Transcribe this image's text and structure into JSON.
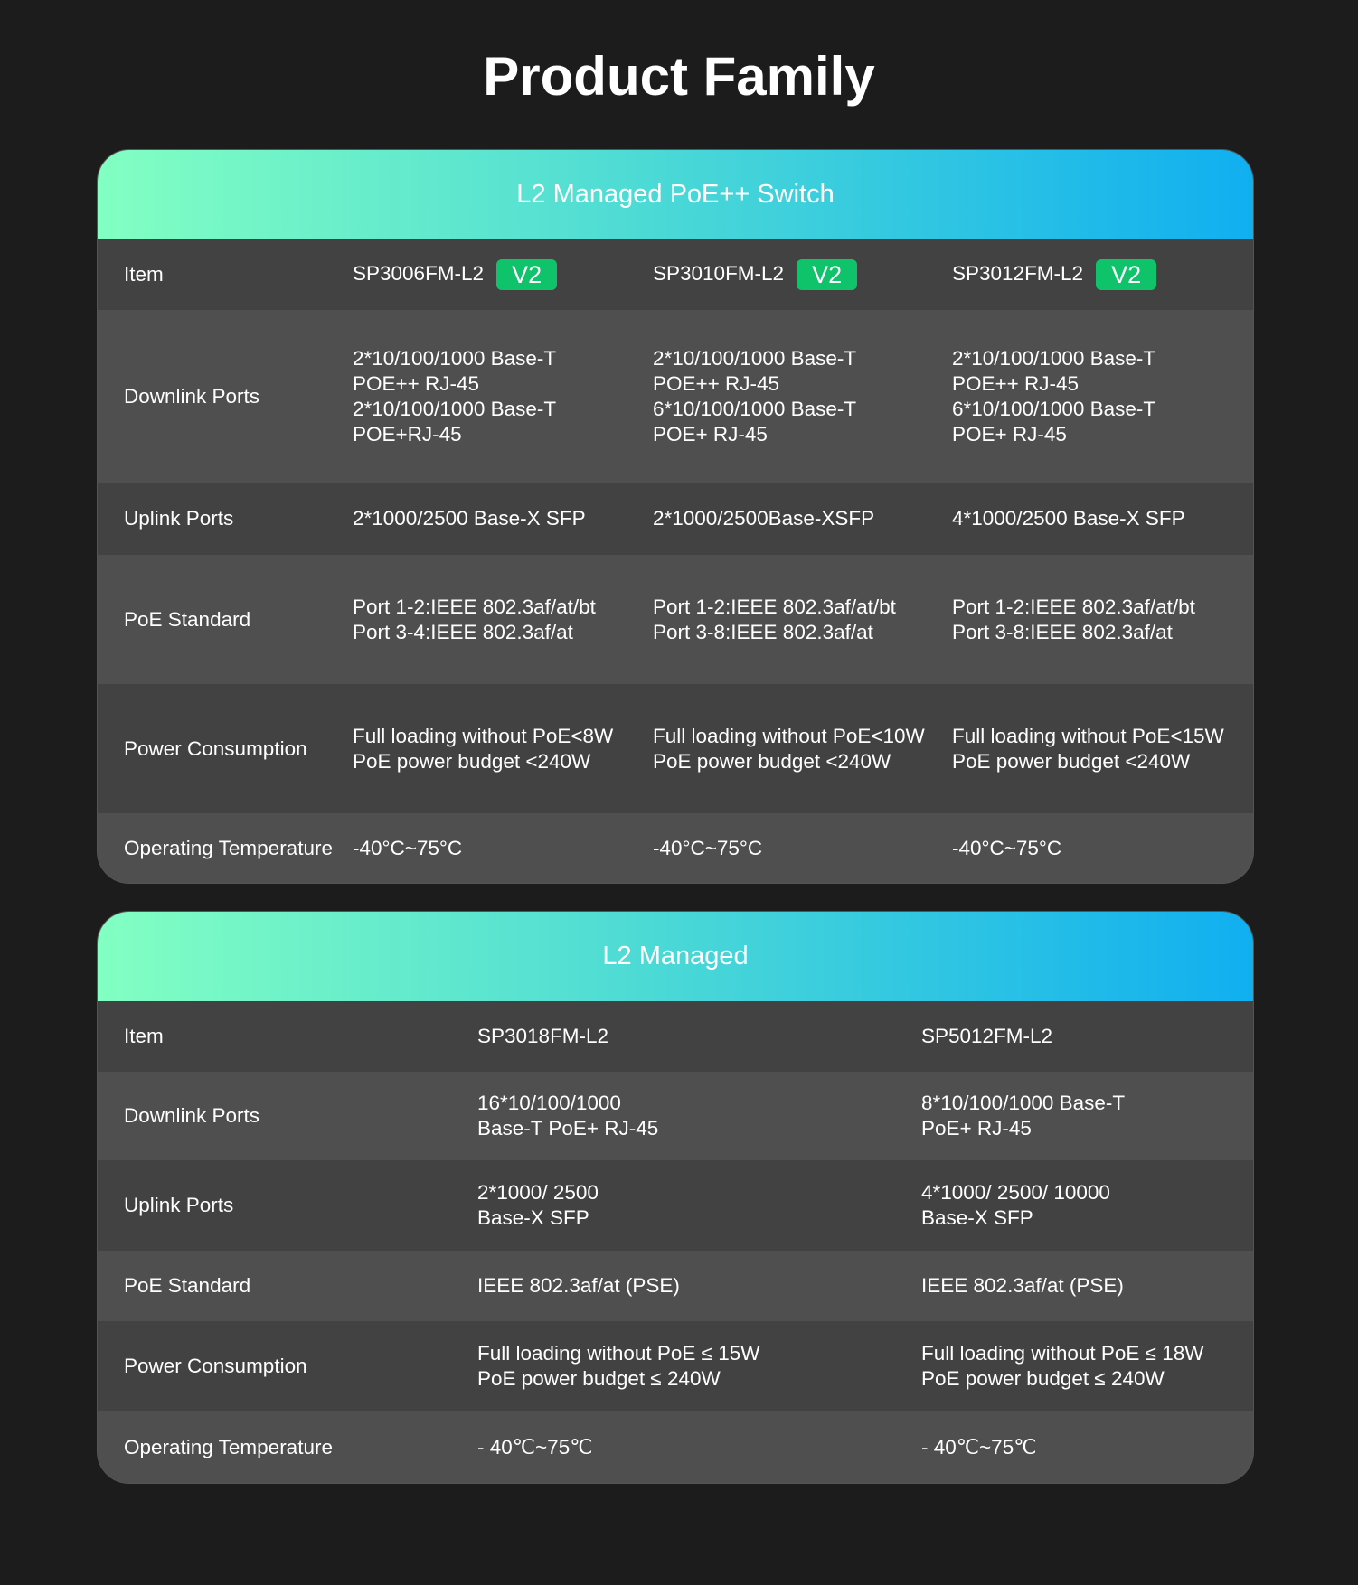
{
  "page_title": "Product Family",
  "tables": [
    {
      "title": "L2 Managed PoE++ Switch",
      "rows": [
        {
          "label": "Item",
          "values": [
            "SP3006FM-L2",
            "SP3010FM-L2",
            "SP3012FM-L2"
          ],
          "badge": "V2"
        },
        {
          "label": "Downlink Ports",
          "values": [
            "2*10/100/1000 Base-T\nPOE++ RJ-45\n2*10/100/1000 Base-T\nPOE+RJ-45",
            "2*10/100/1000 Base-T\nPOE++ RJ-45\n6*10/100/1000 Base-T\nPOE+ RJ-45",
            "2*10/100/1000 Base-T\nPOE++ RJ-45\n6*10/100/1000 Base-T\nPOE+ RJ-45"
          ]
        },
        {
          "label": "Uplink Ports",
          "values": [
            "2*1000/2500 Base-X SFP",
            "2*1000/2500Base-XSFP",
            "4*1000/2500 Base-X SFP"
          ]
        },
        {
          "label": "PoE Standard",
          "values": [
            "Port 1-2:IEEE 802.3af/at/bt\nPort 3-4:IEEE 802.3af/at",
            "Port 1-2:IEEE 802.3af/at/bt\nPort 3-8:IEEE 802.3af/at",
            "Port 1-2:IEEE 802.3af/at/bt\nPort 3-8:IEEE 802.3af/at"
          ]
        },
        {
          "label": "Power Consumption",
          "values": [
            "Full loading without PoE<8W\nPoE power budget <240W",
            "Full loading without PoE<10W\nPoE power budget <240W",
            "Full loading without PoE<15W\nPoE power budget <240W"
          ]
        },
        {
          "label": "Operating Temperature",
          "values": [
            "-40°C~75°C",
            "-40°C~75°C",
            "-40°C~75°C"
          ]
        }
      ]
    },
    {
      "title": "L2 Managed",
      "rows": [
        {
          "label": "Item",
          "values": [
            "SP3018FM-L2",
            "SP5012FM-L2"
          ]
        },
        {
          "label": "Downlink Ports",
          "values": [
            "16*10/100/1000\nBase-T PoE+ RJ-45",
            "8*10/100/1000 Base-T\nPoE+ RJ-45"
          ]
        },
        {
          "label": "Uplink Ports",
          "values": [
            "2*1000/ 2500\nBase-X SFP",
            "4*1000/ 2500/ 10000\nBase-X SFP"
          ]
        },
        {
          "label": "PoE Standard",
          "values": [
            "IEEE 802.3af/at (PSE)",
            "IEEE 802.3af/at (PSE)"
          ]
        },
        {
          "label": "Power Consumption",
          "values": [
            "Full loading without PoE ≤ 15W\nPoE power budget ≤ 240W",
            "Full loading without PoE ≤ 18W\nPoE power budget ≤ 240W"
          ]
        },
        {
          "label": "Operating Temperature",
          "values": [
            "- 40℃~75℃",
            "- 40℃~75℃"
          ]
        }
      ]
    }
  ],
  "colors": {
    "background": "#1c1c1c",
    "badge": "#0fc36a",
    "gradient_start": "#82ffc2",
    "gradient_end": "#10aff0"
  }
}
